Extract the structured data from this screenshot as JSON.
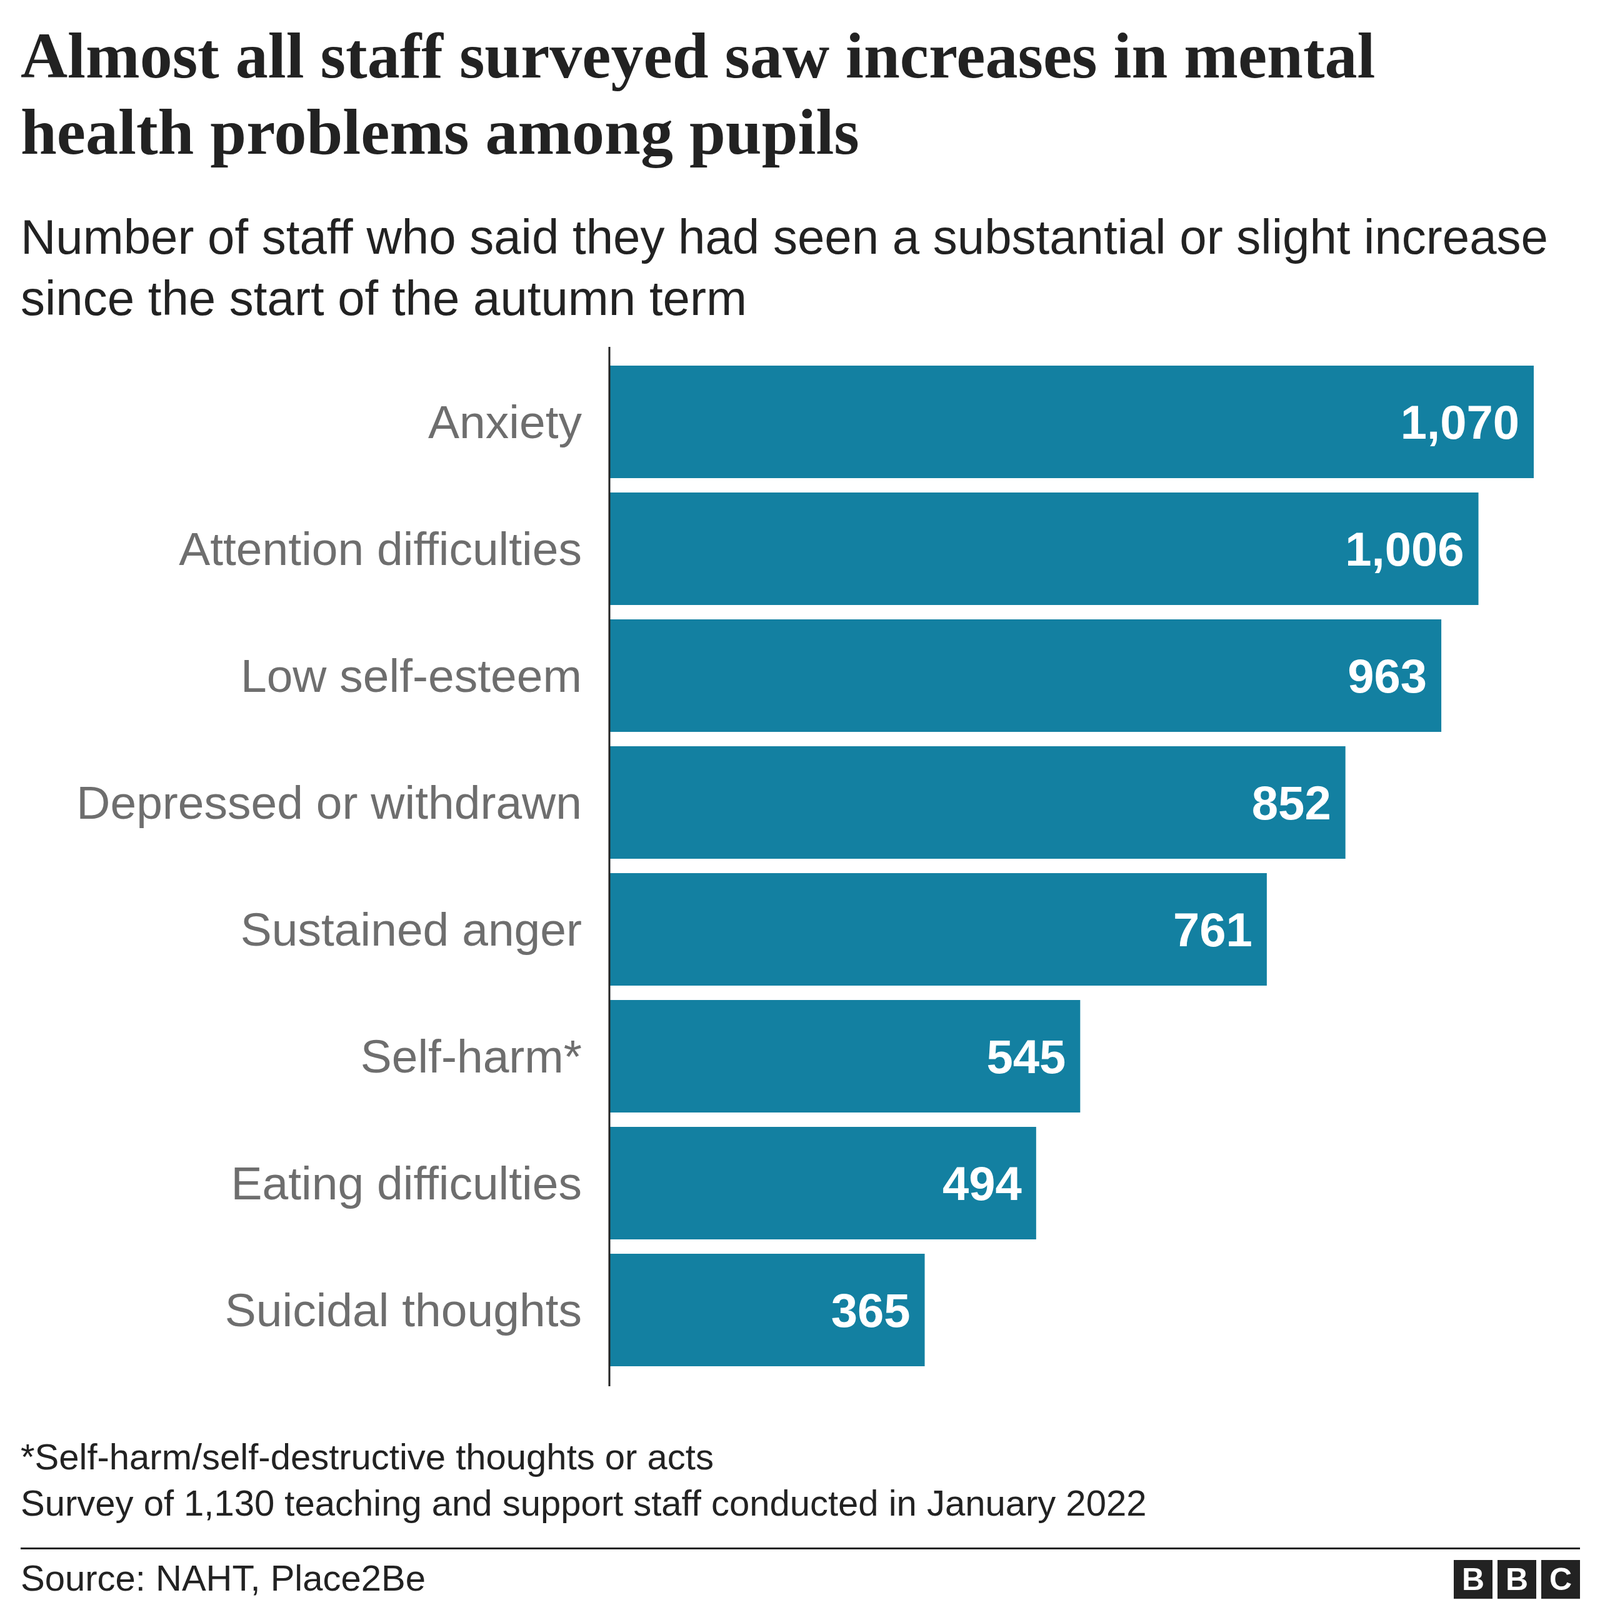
{
  "chart_data": {
    "type": "bar",
    "orientation": "horizontal",
    "title": "Almost all staff surveyed saw increases in mental health problems among pupils",
    "subtitle": "Number of staff who said they had seen a substantial or slight increase since the start of the autumn term",
    "categories": [
      "Anxiety",
      "Attention difficulties",
      "Low self-esteem",
      "Depressed or withdrawn",
      "Sustained anger",
      "Self-harm*",
      "Eating difficulties",
      "Suicidal thoughts"
    ],
    "values": [
      1070,
      1006,
      963,
      852,
      761,
      545,
      494,
      365
    ],
    "value_labels": [
      "1,070",
      "1,006",
      "963",
      "852",
      "761",
      "545",
      "494",
      "365"
    ],
    "color": "#1380a1",
    "xlim": [
      0,
      1070
    ],
    "data_labels": true,
    "tick_labels": "y",
    "notes": [
      "*Self-harm/self-destructive thoughts or acts",
      "Survey of 1,130 teaching and support staff conducted in January 2022"
    ],
    "source": "Source: NAHT, Place2Be",
    "logo": "BBC"
  }
}
